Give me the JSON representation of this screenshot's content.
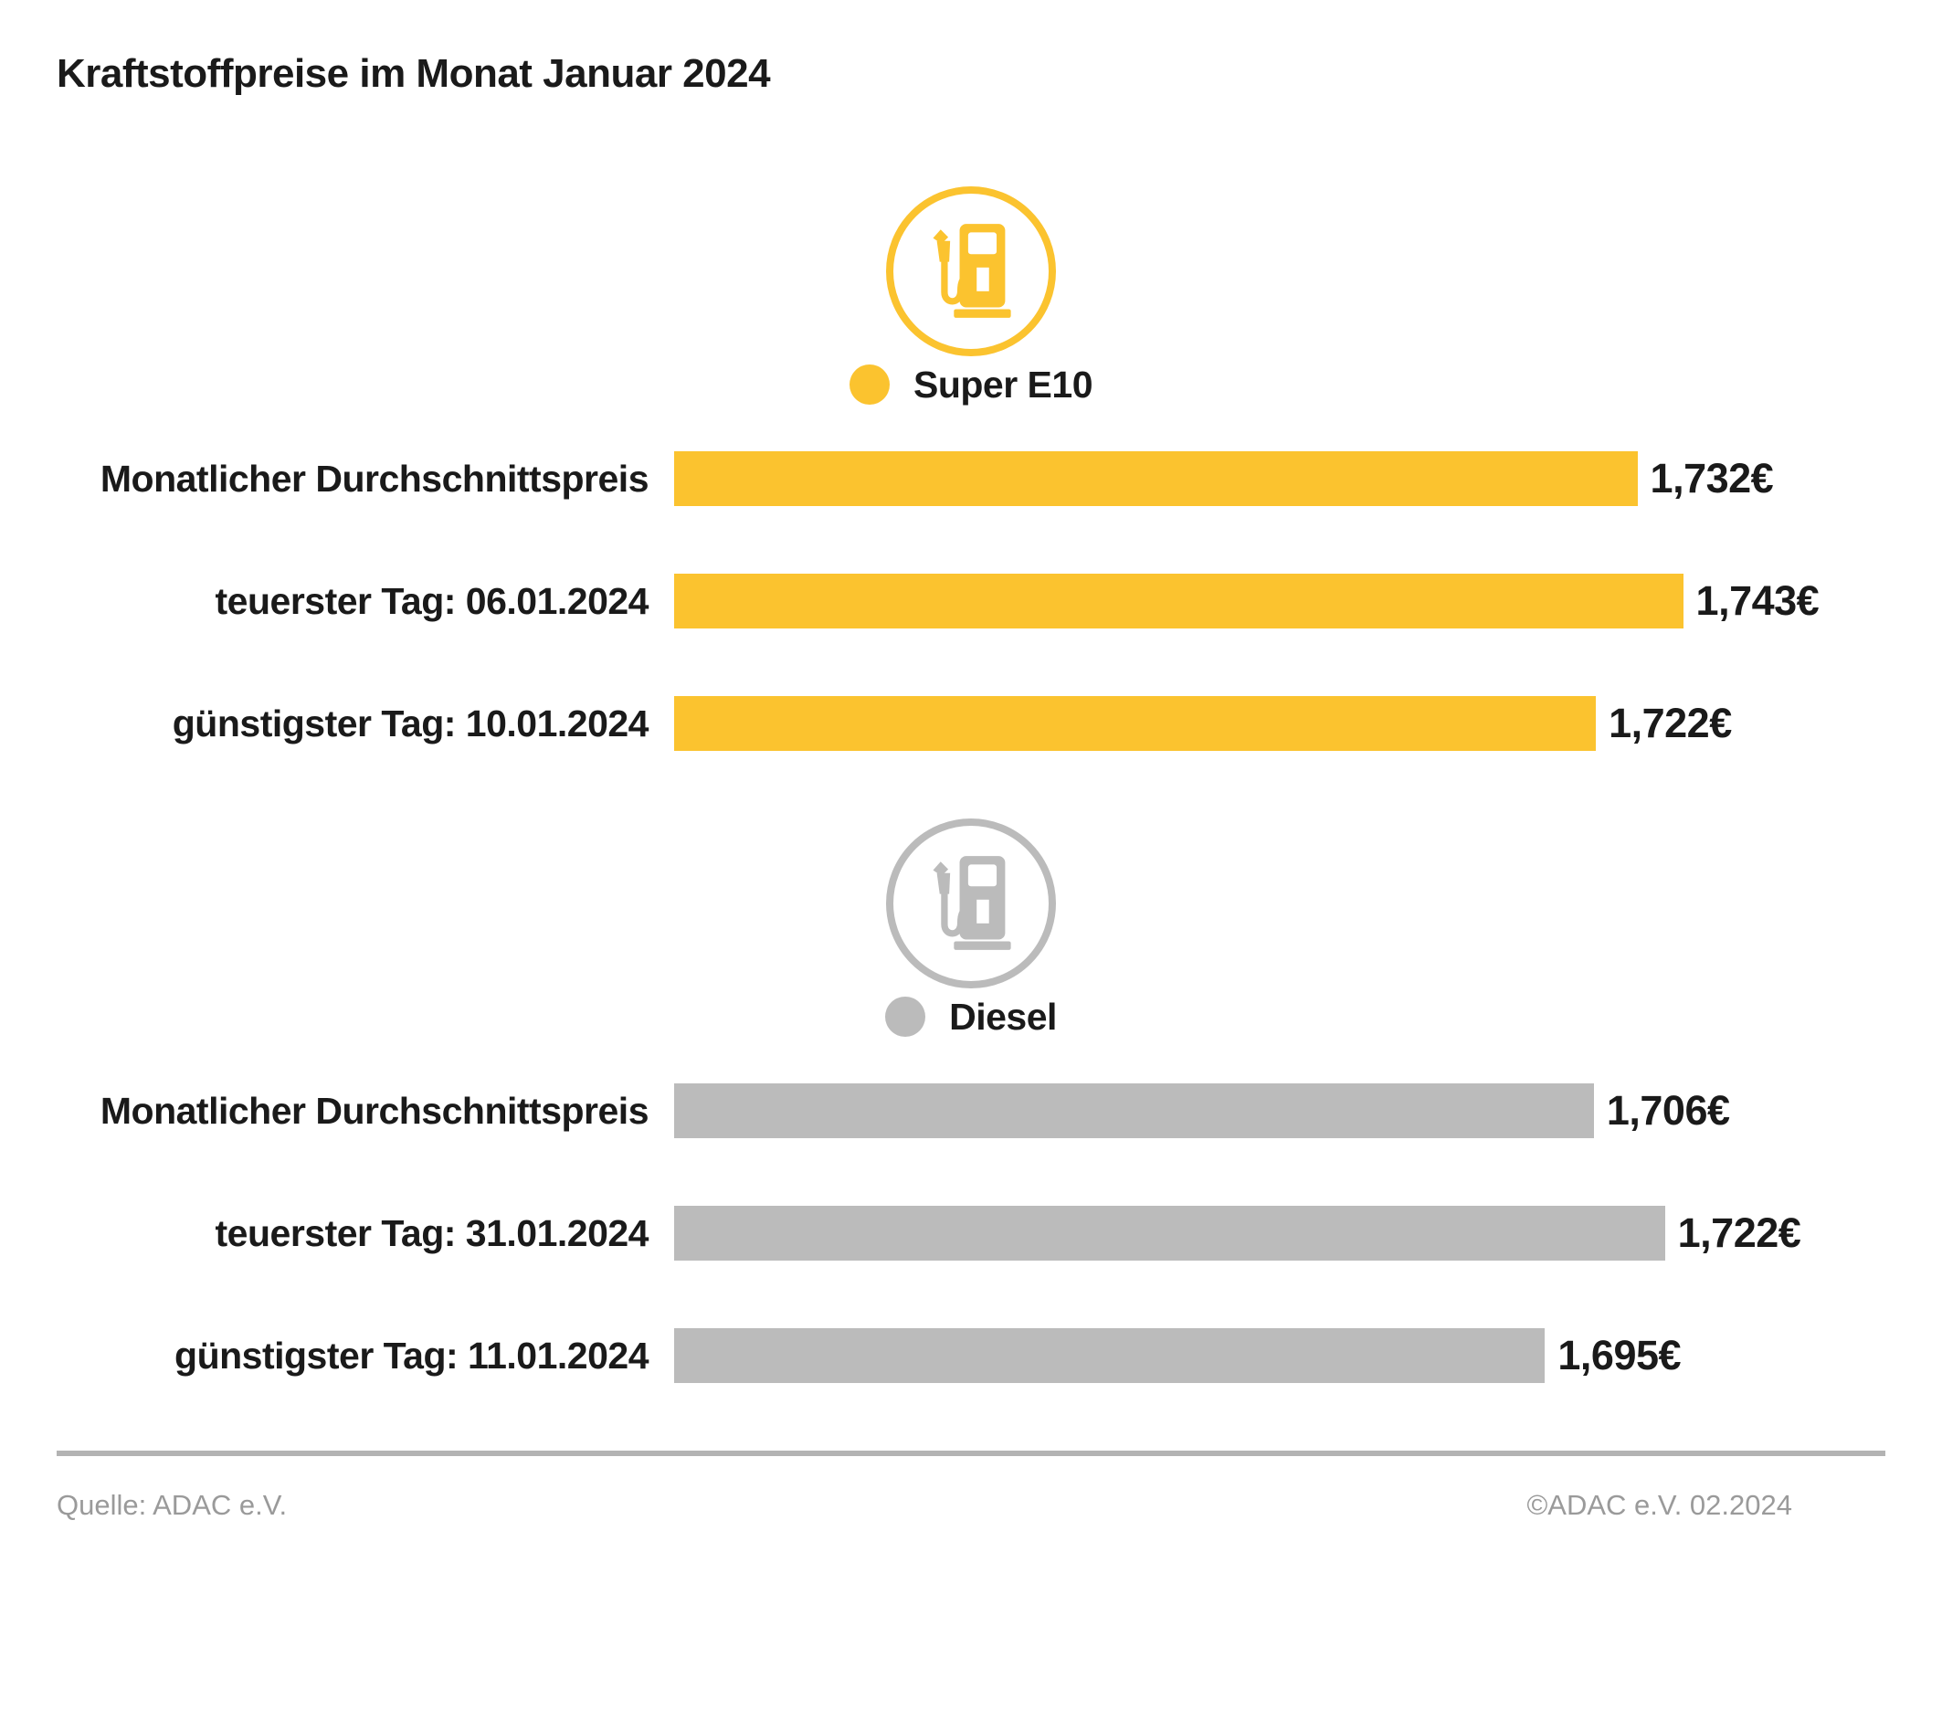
{
  "title": "Kraftstoffpreise im Monat Januar 2024",
  "colors": {
    "super_e10": "#FBC32F",
    "diesel": "#BBBBBB",
    "text": "#1A1A1A",
    "footer_text": "#9A9A9A",
    "divider": "#B3B3B3"
  },
  "chart_data": {
    "type": "bar",
    "orientation": "horizontal",
    "unit": "EUR",
    "grid": false,
    "legend_position": "above-each-section",
    "sections": [
      {
        "name": "Super E10",
        "icon": "fuel-pump-icon",
        "color": "#FBC32F",
        "rows": [
          {
            "label": "Monatlicher Durchschnittspreis",
            "value": 1.732,
            "value_display": "1,732€"
          },
          {
            "label": "teuerster Tag: 06.01.2024",
            "value": 1.743,
            "value_display": "1,743€"
          },
          {
            "label": "günstigster Tag: 10.01.2024",
            "value": 1.722,
            "value_display": "1,722€"
          }
        ],
        "bar_width_pct": {
          "min": 76.1,
          "max": 83.3
        }
      },
      {
        "name": "Diesel",
        "icon": "fuel-pump-icon",
        "color": "#BBBBBB",
        "rows": [
          {
            "label": "Monatlicher Durchschnittspreis",
            "value": 1.706,
            "value_display": "1,706€"
          },
          {
            "label": "teuerster Tag: 31.01.2024",
            "value": 1.722,
            "value_display": "1,722€"
          },
          {
            "label": "günstigster Tag: 11.01.2024",
            "value": 1.695,
            "value_display": "1,695€"
          }
        ],
        "bar_width_pct": {
          "min": 71.9,
          "max": 81.8
        }
      }
    ]
  },
  "footer": {
    "source": "Quelle: ADAC e.V.",
    "copyright": "©ADAC e.V. 02.2024"
  }
}
